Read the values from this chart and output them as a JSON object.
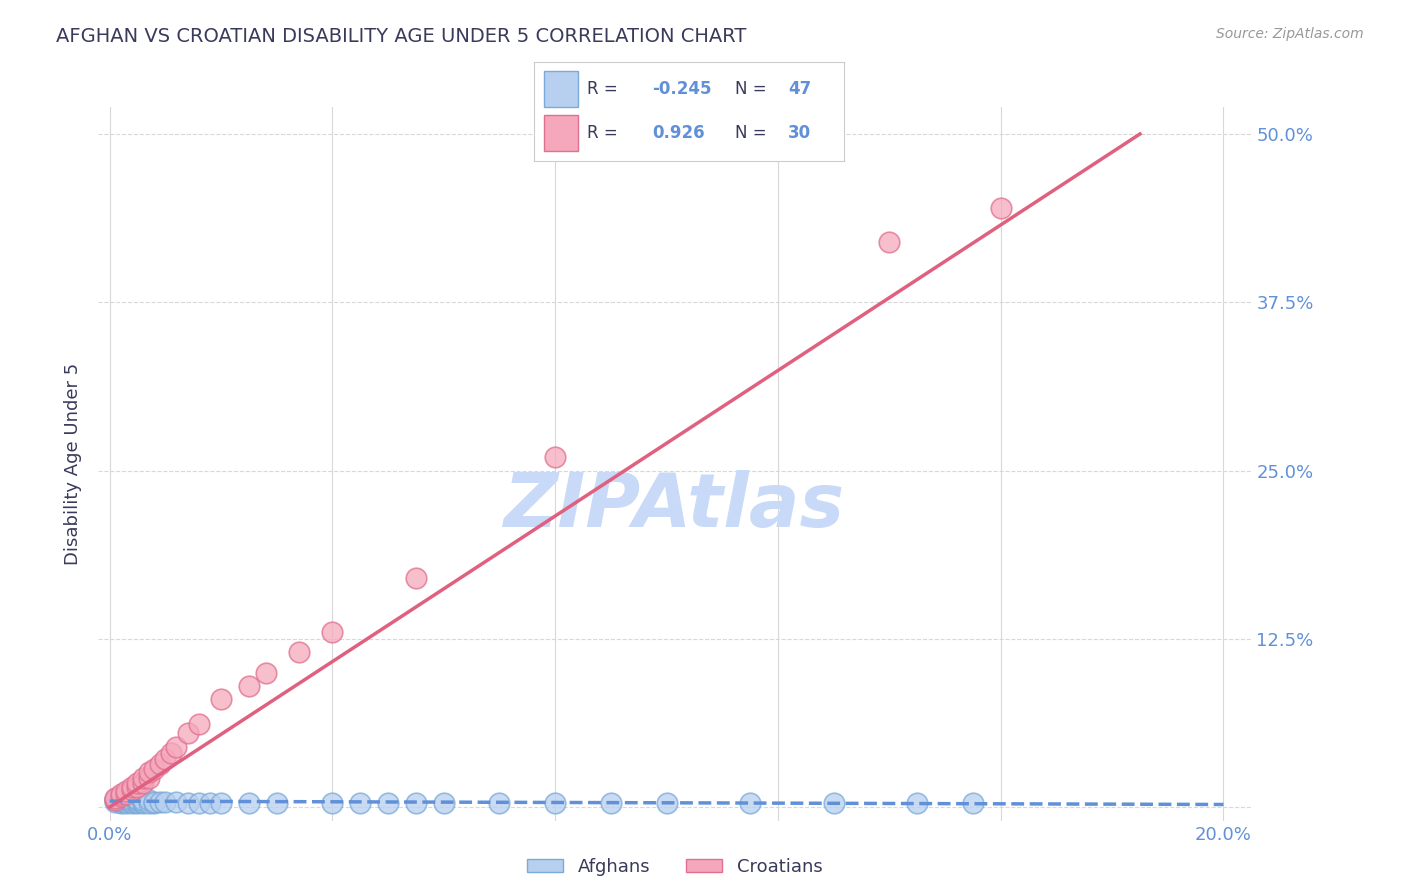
{
  "title": "AFGHAN VS CROATIAN DISABILITY AGE UNDER 5 CORRELATION CHART",
  "source_text": "Source: ZipAtlas.com",
  "ylabel": "Disability Age Under 5",
  "xlim": [
    -0.002,
    0.205
  ],
  "ylim": [
    -0.01,
    0.52
  ],
  "xtick_positions": [
    0.0,
    0.04,
    0.08,
    0.12,
    0.16,
    0.2
  ],
  "ytick_positions": [
    0.0,
    0.125,
    0.25,
    0.375,
    0.5
  ],
  "ytick_labels": [
    "",
    "12.5%",
    "25.0%",
    "37.5%",
    "50.0%"
  ],
  "afghan_color": "#b8d0f0",
  "afghan_edge_color": "#7aaad8",
  "croatian_color": "#f5a8bc",
  "croatian_edge_color": "#e07090",
  "afghan_line_color": "#6090d8",
  "croatian_line_color": "#e06080",
  "title_color": "#3a3a5c",
  "axis_label_color": "#6090d8",
  "grid_color": "#d8d8d8",
  "background_color": "#ffffff",
  "watermark": "ZIPAtlas",
  "watermark_color": "#c8daf8",
  "legend_afghan_label": "Afghans",
  "legend_croatian_label": "Croatians",
  "afghan_R": -0.245,
  "afghan_N": 47,
  "croatian_R": 0.926,
  "croatian_N": 30,
  "afghan_x": [
    0.001,
    0.001,
    0.001,
    0.002,
    0.002,
    0.002,
    0.002,
    0.003,
    0.003,
    0.003,
    0.003,
    0.004,
    0.004,
    0.004,
    0.005,
    0.005,
    0.005,
    0.005,
    0.006,
    0.006,
    0.006,
    0.007,
    0.007,
    0.008,
    0.008,
    0.009,
    0.01,
    0.012,
    0.014,
    0.016,
    0.018,
    0.02,
    0.025,
    0.03,
    0.04,
    0.045,
    0.05,
    0.055,
    0.06,
    0.07,
    0.08,
    0.09,
    0.1,
    0.115,
    0.13,
    0.145,
    0.155
  ],
  "afghan_y": [
    0.004,
    0.005,
    0.006,
    0.003,
    0.004,
    0.005,
    0.006,
    0.003,
    0.004,
    0.005,
    0.006,
    0.003,
    0.004,
    0.005,
    0.003,
    0.004,
    0.005,
    0.006,
    0.003,
    0.004,
    0.005,
    0.003,
    0.005,
    0.003,
    0.004,
    0.004,
    0.004,
    0.004,
    0.003,
    0.003,
    0.003,
    0.003,
    0.003,
    0.003,
    0.003,
    0.003,
    0.003,
    0.003,
    0.003,
    0.003,
    0.003,
    0.003,
    0.003,
    0.003,
    0.003,
    0.003,
    0.003
  ],
  "croatian_x": [
    0.001,
    0.001,
    0.002,
    0.002,
    0.003,
    0.003,
    0.004,
    0.004,
    0.005,
    0.005,
    0.006,
    0.006,
    0.007,
    0.007,
    0.008,
    0.009,
    0.01,
    0.011,
    0.012,
    0.014,
    0.016,
    0.02,
    0.025,
    0.028,
    0.034,
    0.04,
    0.055,
    0.08,
    0.14,
    0.16
  ],
  "croatian_y": [
    0.005,
    0.007,
    0.008,
    0.01,
    0.01,
    0.012,
    0.013,
    0.015,
    0.015,
    0.018,
    0.018,
    0.022,
    0.022,
    0.026,
    0.028,
    0.032,
    0.036,
    0.04,
    0.045,
    0.055,
    0.062,
    0.08,
    0.09,
    0.1,
    0.115,
    0.13,
    0.17,
    0.26,
    0.42,
    0.445
  ],
  "croatian_line_x0": 0.0,
  "croatian_line_y0": 0.0,
  "croatian_line_x1": 0.185,
  "croatian_line_y1": 0.5,
  "afghan_line_x0": 0.0,
  "afghan_line_y0": 0.0045,
  "afghan_line_x1": 0.2,
  "afghan_line_y1": 0.002
}
